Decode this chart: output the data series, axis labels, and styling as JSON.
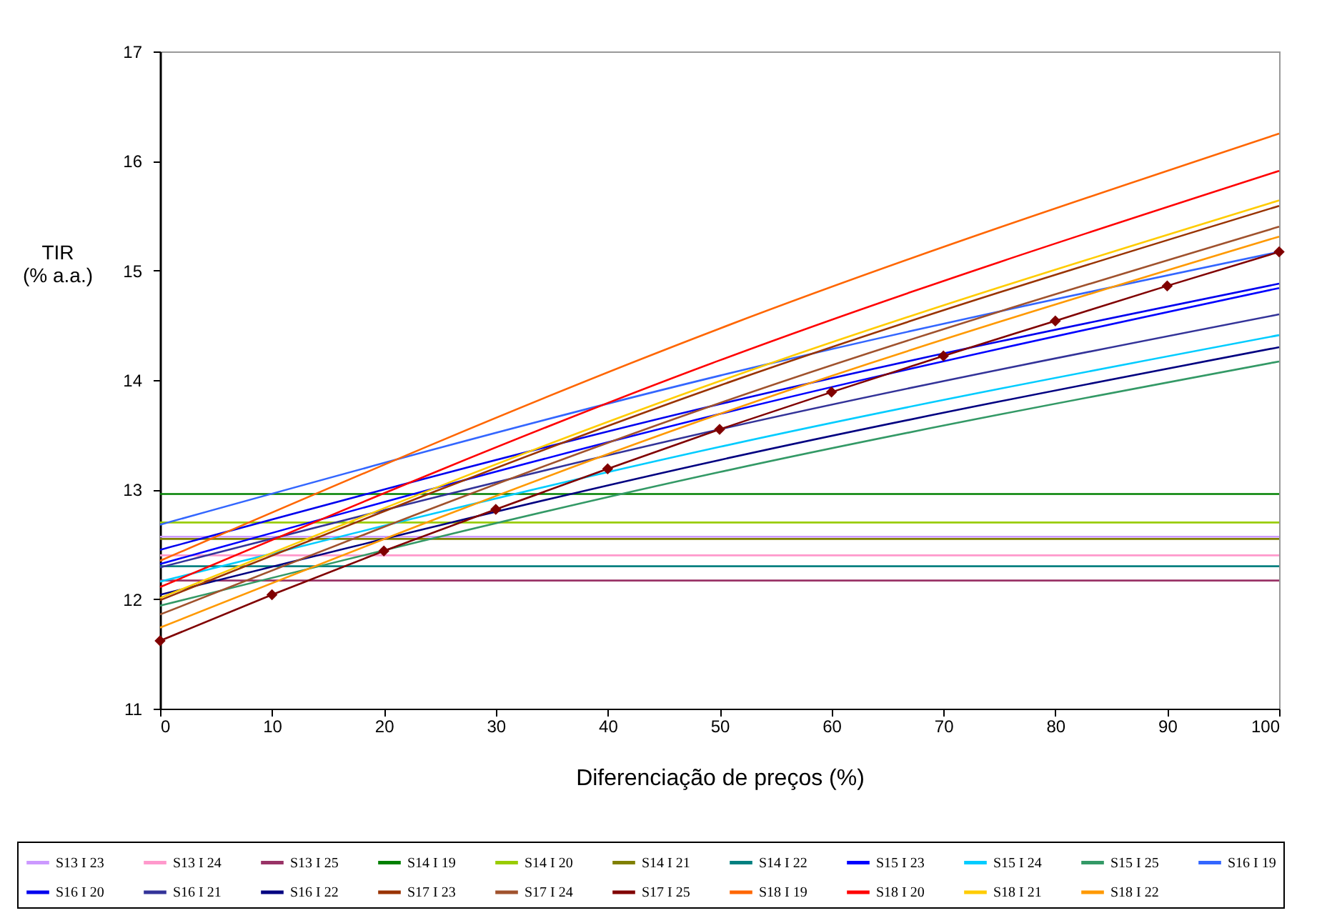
{
  "chart_data": {
    "type": "line",
    "xlabel": "Diferenciação de preços (%)",
    "ylabel": "TIR\n(% a.a.)",
    "xlim": [
      0,
      100
    ],
    "xticks": [
      0,
      10,
      20,
      30,
      40,
      50,
      60,
      70,
      80,
      90,
      100
    ],
    "ylim": [
      11,
      17
    ],
    "yticks": [
      11,
      12,
      13,
      14,
      15,
      16,
      17
    ],
    "grid": false,
    "legend": "bottom",
    "marker": "none",
    "line_style": "solid",
    "series": [
      {
        "name": "S13 I 23",
        "color": "#cc99ff",
        "x": [
          0,
          100
        ],
        "values": [
          12.57,
          12.57
        ]
      },
      {
        "name": "S13 I 24",
        "color": "#ff99cc",
        "x": [
          0,
          100
        ],
        "values": [
          12.4,
          12.4
        ]
      },
      {
        "name": "S13 I 25",
        "color": "#993366",
        "x": [
          0,
          100
        ],
        "values": [
          12.17,
          12.17
        ]
      },
      {
        "name": "S14 I 19",
        "color": "#008000",
        "x": [
          0,
          100
        ],
        "values": [
          12.96,
          12.96
        ]
      },
      {
        "name": "S14 I 20",
        "color": "#99cc00",
        "x": [
          0,
          100
        ],
        "values": [
          12.7,
          12.7
        ]
      },
      {
        "name": "S14 I 21",
        "color": "#808000",
        "x": [
          0,
          100
        ],
        "values": [
          12.55,
          12.55
        ]
      },
      {
        "name": "S14 I 22",
        "color": "#008080",
        "x": [
          0,
          100
        ],
        "values": [
          12.3,
          12.3
        ]
      },
      {
        "name": "S15 I 23",
        "color": "#0000ff",
        "x": [
          0,
          50,
          100
        ],
        "values": [
          12.32,
          13.69,
          14.84
        ]
      },
      {
        "name": "S15 I 24",
        "color": "#00ccff",
        "x": [
          0,
          50,
          100
        ],
        "values": [
          12.16,
          13.39,
          14.41
        ]
      },
      {
        "name": "S15 I 25",
        "color": "#339966",
        "x": [
          0,
          50,
          100
        ],
        "values": [
          11.94,
          13.16,
          14.17
        ]
      },
      {
        "name": "S16 I 19",
        "color": "#3366ff",
        "x": [
          0,
          50,
          100
        ],
        "values": [
          12.68,
          14.04,
          15.17
        ]
      },
      {
        "name": "S16 I 20",
        "color": "#0000ee",
        "x": [
          0,
          50,
          100
        ],
        "values": [
          12.45,
          13.78,
          14.88
        ]
      },
      {
        "name": "S16 I 21",
        "color": "#333399",
        "x": [
          0,
          50,
          100
        ],
        "values": [
          12.29,
          13.55,
          14.6
        ]
      },
      {
        "name": "S16 I 22",
        "color": "#000080",
        "x": [
          0,
          50,
          100
        ],
        "values": [
          12.04,
          13.27,
          14.3
        ]
      },
      {
        "name": "S17 I 23",
        "color": "#993300",
        "x": [
          0,
          50,
          100
        ],
        "values": [
          11.99,
          13.95,
          15.59
        ]
      },
      {
        "name": "S17 I 24",
        "color": "#a0522d",
        "x": [
          0,
          50,
          100
        ],
        "values": [
          11.86,
          13.79,
          15.4
        ]
      },
      {
        "name": "S17 I 25",
        "color": "#800000",
        "marker": "diamond",
        "x": [
          0,
          10,
          20,
          30,
          40,
          50,
          60,
          70,
          80,
          90,
          100
        ],
        "values": [
          11.62,
          12.04,
          12.44,
          12.82,
          13.19,
          13.55,
          13.89,
          14.22,
          14.54,
          14.86,
          15.17
        ]
      },
      {
        "name": "S18 I 19",
        "color": "#ff6600",
        "x": [
          0,
          50,
          100
        ],
        "values": [
          12.35,
          14.47,
          16.25
        ]
      },
      {
        "name": "S18 I 20",
        "color": "#ff0000",
        "x": [
          0,
          50,
          100
        ],
        "values": [
          12.11,
          14.18,
          15.91
        ]
      },
      {
        "name": "S18 I 21",
        "color": "#ffcc00",
        "x": [
          0,
          50,
          100
        ],
        "values": [
          12.01,
          13.99,
          15.64
        ]
      },
      {
        "name": "S18 I 22",
        "color": "#ff9900",
        "x": [
          0,
          50,
          100
        ],
        "values": [
          11.74,
          13.69,
          15.31
        ]
      }
    ]
  }
}
